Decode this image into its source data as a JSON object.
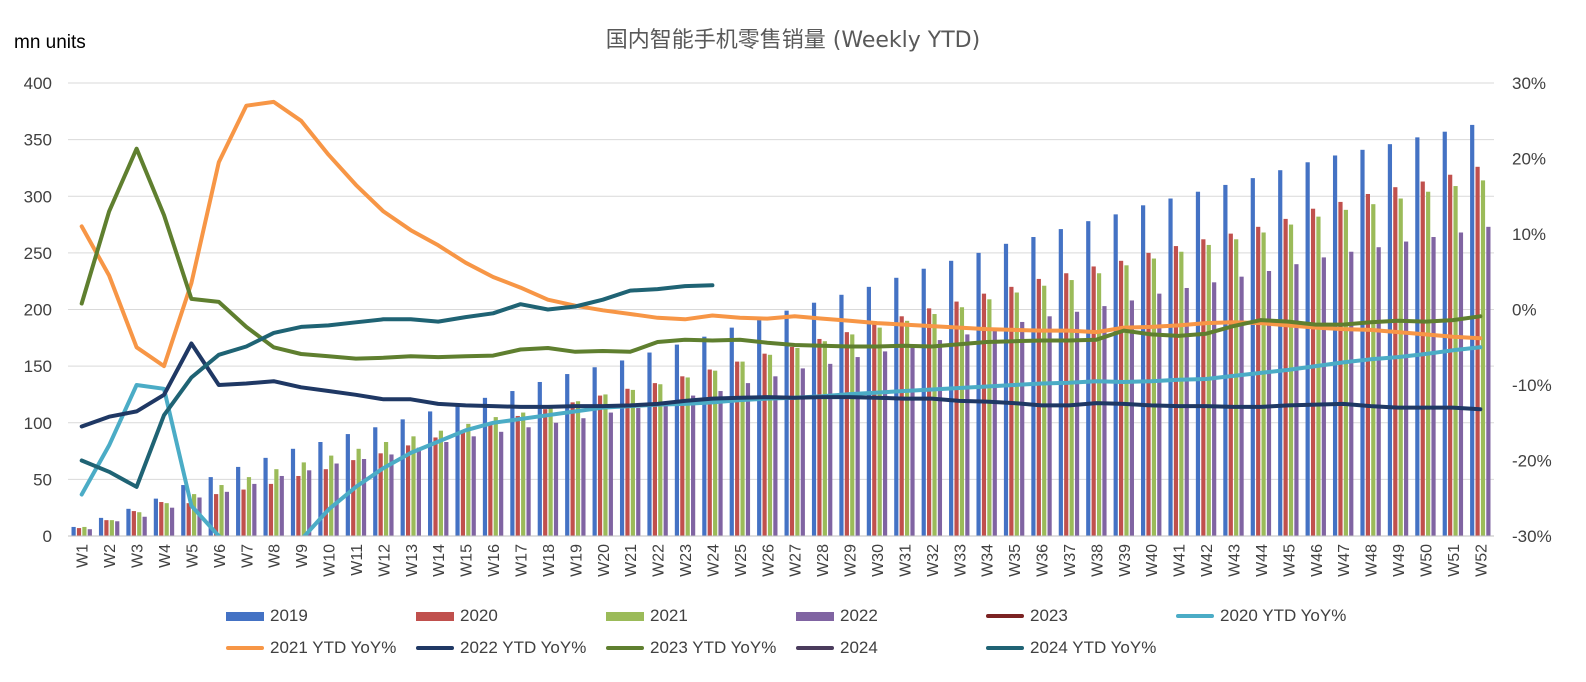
{
  "chart_data": {
    "type": "bar+line",
    "title": "国内智能手机零售销量 (Weekly YTD)",
    "y_unit_label": "mn units",
    "y_left": {
      "min": 0,
      "max": 400,
      "ticks": [
        "0",
        "50",
        "100",
        "150",
        "200",
        "250",
        "300",
        "350",
        "400"
      ]
    },
    "y_right": {
      "min": -30,
      "max": 30,
      "ticks": [
        "-30%",
        "-20%",
        "-10%",
        "0%",
        "10%",
        "20%",
        "30%"
      ]
    },
    "grid": "horizontal",
    "legend_position": "bottom",
    "categories": [
      "W1",
      "W2",
      "W3",
      "W4",
      "W5",
      "W6",
      "W7",
      "W8",
      "W9",
      "W10",
      "W11",
      "W12",
      "W13",
      "W14",
      "W15",
      "W16",
      "W17",
      "W18",
      "W19",
      "W20",
      "W21",
      "W22",
      "W23",
      "W24",
      "W25",
      "W26",
      "W27",
      "W28",
      "W29",
      "W30",
      "W31",
      "W32",
      "W33",
      "W34",
      "W35",
      "W36",
      "W37",
      "W38",
      "W39",
      "W40",
      "W41",
      "W42",
      "W43",
      "W44",
      "W45",
      "W46",
      "W47",
      "W48",
      "W49",
      "W50",
      "W51",
      "W52"
    ],
    "bar_series": [
      {
        "name": "2019",
        "color": "#4472C4",
        "values": [
          8,
          16,
          24,
          33,
          45,
          52,
          61,
          69,
          77,
          83,
          90,
          96,
          103,
          110,
          116,
          122,
          128,
          136,
          143,
          149,
          155,
          162,
          169,
          176,
          184,
          191,
          199,
          206,
          213,
          220,
          228,
          236,
          243,
          250,
          258,
          264,
          271,
          278,
          284,
          292,
          298,
          304,
          310,
          316,
          323,
          330,
          336,
          341,
          346,
          352,
          357,
          363
        ]
      },
      {
        "name": "2020",
        "color": "#C0504D",
        "values": [
          7,
          14,
          22,
          30,
          29,
          37,
          41,
          46,
          53,
          59,
          67,
          73,
          80,
          87,
          93,
          100,
          106,
          112,
          118,
          124,
          130,
          135,
          141,
          147,
          154,
          161,
          167,
          174,
          180,
          187,
          194,
          201,
          207,
          214,
          220,
          227,
          232,
          238,
          243,
          250,
          256,
          262,
          267,
          273,
          280,
          289,
          295,
          302,
          308,
          313,
          319,
          326
        ]
      },
      {
        "name": "2021",
        "color": "#9BBB59",
        "values": [
          8,
          14,
          21,
          29,
          37,
          45,
          52,
          59,
          65,
          71,
          77,
          83,
          88,
          93,
          99,
          105,
          109,
          114,
          119,
          125,
          129,
          134,
          140,
          146,
          154,
          160,
          166,
          172,
          178,
          184,
          190,
          196,
          202,
          209,
          215,
          221,
          226,
          232,
          239,
          245,
          251,
          257,
          262,
          268,
          275,
          282,
          288,
          293,
          298,
          304,
          309,
          314
        ]
      },
      {
        "name": "2022",
        "color": "#8064A2",
        "values": [
          6,
          13,
          17,
          25,
          34,
          39,
          46,
          53,
          58,
          64,
          68,
          72,
          78,
          83,
          88,
          92,
          96,
          100,
          104,
          109,
          113,
          118,
          124,
          128,
          135,
          141,
          148,
          152,
          158,
          163,
          168,
          173,
          178,
          183,
          189,
          194,
          198,
          203,
          208,
          214,
          219,
          224,
          229,
          234,
          240,
          246,
          251,
          255,
          260,
          264,
          268,
          273
        ]
      }
    ],
    "line_series": [
      {
        "name": "2020 YTD YoY%",
        "color": "#4BACC6",
        "axis": "right",
        "values": [
          -24.5,
          -18,
          -10,
          -10.5,
          -26,
          -30,
          -33,
          -33,
          -30.5,
          -26.5,
          -23.5,
          -21,
          -19,
          -17.5,
          -16,
          -15,
          -14.5,
          -14,
          -13.5,
          -13,
          -12.8,
          -12.6,
          -12.5,
          -12.3,
          -12,
          -11.8,
          -11.7,
          -11.5,
          -11.2,
          -11,
          -10.8,
          -10.6,
          -10.4,
          -10.2,
          -10,
          -9.8,
          -9.7,
          -9.5,
          -9.6,
          -9.5,
          -9.3,
          -9.2,
          -8.8,
          -8.4,
          -8,
          -7.5,
          -7,
          -6.6,
          -6.3,
          -5.9,
          -5.4,
          -5
        ]
      },
      {
        "name": "2021 YTD YoY%",
        "color": "#F79646",
        "axis": "right",
        "values": [
          11,
          4.5,
          -5,
          -7.5,
          3.5,
          19.5,
          27,
          27.5,
          25,
          20.5,
          16.5,
          13,
          10.5,
          8.5,
          6.2,
          4.3,
          2.9,
          1.3,
          0.5,
          -0.1,
          -0.6,
          -1.1,
          -1.3,
          -0.8,
          -1.1,
          -1.2,
          -0.9,
          -1.2,
          -1.5,
          -1.8,
          -2,
          -2.2,
          -2.4,
          -2.6,
          -2.7,
          -2.8,
          -2.8,
          -3,
          -2.4,
          -2.3,
          -2.1,
          -1.8,
          -1.7,
          -1.8,
          -2.1,
          -2.4,
          -2.6,
          -2.7,
          -3,
          -3.3,
          -3.6,
          -3.8
        ]
      },
      {
        "name": "2022 YTD YoY%",
        "color": "#1F3864",
        "axis": "right",
        "values": [
          -15.5,
          -14.2,
          -13.5,
          -11.3,
          -4.5,
          -10,
          -9.8,
          -9.5,
          -10.3,
          -10.8,
          -11.3,
          -11.9,
          -11.9,
          -12.5,
          -12.7,
          -12.8,
          -12.9,
          -12.9,
          -12.8,
          -12.8,
          -12.7,
          -12.5,
          -12.1,
          -11.8,
          -11.7,
          -11.6,
          -11.7,
          -11.6,
          -11.6,
          -11.7,
          -11.8,
          -11.8,
          -12.1,
          -12.2,
          -12.4,
          -12.7,
          -12.7,
          -12.4,
          -12.5,
          -12.7,
          -12.8,
          -12.8,
          -12.9,
          -12.9,
          -12.7,
          -12.6,
          -12.5,
          -12.8,
          -13,
          -13,
          -13,
          -13.2
        ]
      },
      {
        "name": "2023 YTD YoY%",
        "color": "#5F7F2F",
        "axis": "right",
        "values": [
          0.8,
          13,
          21.3,
          12.5,
          1.4,
          1,
          -2.3,
          -5,
          -5.9,
          -6.2,
          -6.5,
          -6.4,
          -6.2,
          -6.3,
          -6.2,
          -6.1,
          -5.3,
          -5.1,
          -5.6,
          -5.5,
          -5.6,
          -4.3,
          -4,
          -4.1,
          -4,
          -4.4,
          -4.7,
          -4.8,
          -4.9,
          -4.9,
          -4.8,
          -4.9,
          -4.6,
          -4.3,
          -4.2,
          -4.1,
          -4.1,
          -4,
          -2.8,
          -3.3,
          -3.5,
          -3.2,
          -2.2,
          -1.4,
          -1.6,
          -2,
          -2,
          -1.7,
          -1.5,
          -1.6,
          -1.4,
          -0.9
        ]
      },
      {
        "name": "2024 YTD YoY%",
        "color": "#1F6374",
        "axis": "right",
        "values": [
          -20,
          -21.5,
          -23.5,
          -14,
          -9,
          -6,
          -4.9,
          -3.1,
          -2.3,
          -2.1,
          -1.7,
          -1.3,
          -1.3,
          -1.6,
          -1,
          -0.5,
          0.7,
          0,
          0.4,
          1.3,
          2.5,
          2.7,
          3.1,
          3.2,
          null,
          null,
          null,
          null,
          null,
          null,
          null,
          null,
          null,
          null,
          null,
          null,
          null,
          null,
          null,
          null,
          null,
          null,
          null,
          null,
          null,
          null,
          null,
          null,
          null,
          null,
          null,
          null
        ]
      }
    ],
    "legend": [
      {
        "label": "2019",
        "kind": "bar",
        "color": "#4472C4"
      },
      {
        "label": "2020",
        "kind": "bar",
        "color": "#C0504D"
      },
      {
        "label": "2021",
        "kind": "bar",
        "color": "#9BBB59"
      },
      {
        "label": "2022",
        "kind": "bar",
        "color": "#8064A2"
      },
      {
        "label": "2023",
        "kind": "line",
        "color": "#7B2222"
      },
      {
        "label": "2020 YTD YoY%",
        "kind": "line",
        "color": "#4BACC6"
      },
      {
        "label": "2021 YTD YoY%",
        "kind": "line",
        "color": "#F79646"
      },
      {
        "label": "2022 YTD YoY%",
        "kind": "line",
        "color": "#1F3864"
      },
      {
        "label": "2023 YTD YoY%",
        "kind": "line",
        "color": "#5F7F2F"
      },
      {
        "label": "2024",
        "kind": "line",
        "color": "#4A3B5C"
      },
      {
        "label": "2024 YTD YoY%",
        "kind": "line",
        "color": "#1F6374"
      }
    ]
  }
}
